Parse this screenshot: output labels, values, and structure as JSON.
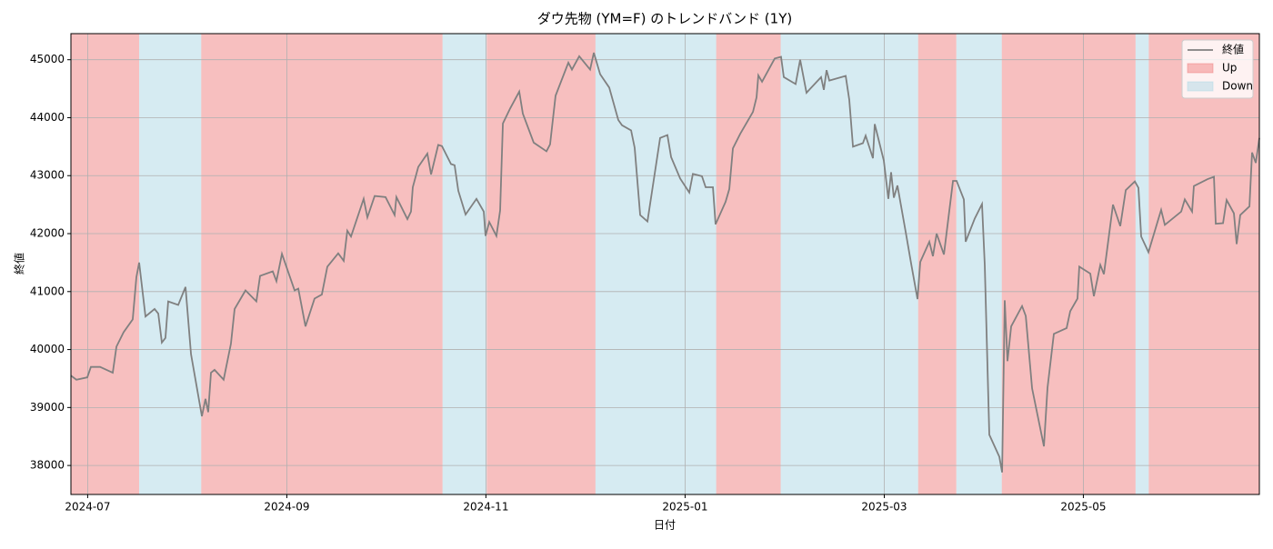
{
  "chart_data": {
    "type": "line",
    "title": "ダウ先物 (YM=F) のトレンドバンド (1Y)",
    "x_label": "日付",
    "y_label": "終値",
    "x": [
      2024.486,
      2024.4906,
      2024.4997,
      2024.5027,
      2024.5104,
      2024.521,
      2024.5241,
      2024.5301,
      2024.5377,
      2024.5408,
      2024.5431,
      2024.5484,
      2024.556,
      2024.5591,
      2024.5621,
      2024.5651,
      2024.5674,
      2024.5758,
      2024.5819,
      2024.5865,
      2024.5956,
      2024.5986,
      2024.6009,
      2024.6032,
      2024.6062,
      2024.6138,
      2024.6199,
      2024.623,
      2024.6321,
      2024.6412,
      2024.6443,
      2024.6549,
      2024.658,
      2024.6626,
      2024.6732,
      2024.6763,
      2024.6823,
      2024.6899,
      2024.696,
      2024.7006,
      2024.7097,
      2024.7143,
      2024.7173,
      2024.7204,
      2024.731,
      2024.7341,
      2024.7402,
      2024.7493,
      2024.7569,
      2024.7584,
      2024.7676,
      2024.7706,
      2024.7721,
      2024.7767,
      2024.7843,
      2024.7874,
      2024.7934,
      2024.7965,
      2024.8041,
      2024.8071,
      2024.8102,
      2024.8163,
      2024.8254,
      2024.8315,
      2024.833,
      2024.8361,
      2024.8421,
      2024.8452,
      2024.8475,
      2024.8536,
      2024.8612,
      2024.8642,
      2024.8733,
      2024.884,
      2024.887,
      2024.8916,
      2024.9023,
      2024.9053,
      2024.9114,
      2024.9205,
      2024.9236,
      2024.9289,
      2024.9365,
      2024.9441,
      2024.9472,
      2024.9548,
      2024.9578,
      2024.9624,
      2024.9685,
      2024.9791,
      2024.9852,
      2024.9883,
      2024.9959,
      2025.0035,
      2025.0065,
      2025.0141,
      2025.0172,
      2025.0233,
      2025.0255,
      2025.0339,
      2025.037,
      2025.04,
      2025.0461,
      2025.0568,
      2025.0598,
      2025.0613,
      2025.0644,
      2025.075,
      2025.0803,
      2025.0826,
      2025.0925,
      2025.0963,
      2025.1016,
      2025.1138,
      2025.1161,
      2025.1184,
      2025.1207,
      2025.1344,
      2025.1374,
      2025.1405,
      2025.1488,
      2025.1511,
      2025.1572,
      2025.1587,
      2025.1663,
      2025.1701,
      2025.1724,
      2025.1747,
      2025.1777,
      2025.1846,
      2025.1892,
      2025.1945,
      2025.1968,
      2025.2044,
      2025.2074,
      2025.2105,
      2025.2166,
      2025.2242,
      2025.2272,
      2025.2333,
      2025.2348,
      2025.2424,
      2025.2485,
      2025.2508,
      2025.2546,
      2025.263,
      2025.2653,
      2025.2675,
      2025.2698,
      2025.2729,
      2025.282,
      2025.2851,
      2025.2904,
      2025.3003,
      2025.3033,
      2025.3086,
      2025.3193,
      2025.3223,
      2025.3284,
      2025.3299,
      2025.3391,
      2025.3421,
      2025.3475,
      2025.3505,
      2025.3581,
      2025.3642,
      2025.3688,
      2025.3764,
      2025.3794,
      2025.3817,
      2025.3878,
      2025.3984,
      2025.4015,
      2025.4152,
      2025.4182,
      2025.4243,
      2025.4258,
      2025.4373,
      2025.4426,
      2025.4441,
      2025.4502,
      2025.4532,
      2025.4593,
      2025.4616,
      2025.4646,
      2025.4723,
      2025.4745,
      2025.4776,
      2025.4806
    ],
    "series": [
      {
        "name": "終値",
        "color": "#808080",
        "values": [
          39550,
          39480,
          39520,
          39700,
          39700,
          39600,
          40050,
          40300,
          40520,
          41250,
          41500,
          40570,
          40700,
          40620,
          40120,
          40200,
          40830,
          40770,
          41080,
          39920,
          38850,
          39150,
          38920,
          39600,
          39650,
          39480,
          40100,
          40700,
          41020,
          40830,
          41270,
          41350,
          41180,
          41650,
          41020,
          41050,
          40400,
          40880,
          40950,
          41430,
          41660,
          41530,
          42050,
          41950,
          42600,
          42280,
          42650,
          42630,
          42320,
          42630,
          42250,
          42380,
          42800,
          43150,
          43380,
          43020,
          43530,
          43510,
          43200,
          43180,
          42740,
          42330,
          42600,
          42380,
          41960,
          42200,
          41960,
          42400,
          43900,
          44160,
          44450,
          44070,
          43570,
          43420,
          43540,
          44380,
          44950,
          44830,
          45060,
          44830,
          45120,
          44750,
          44520,
          43960,
          43870,
          43780,
          43480,
          42320,
          42210,
          43650,
          43700,
          43320,
          42950,
          42710,
          43030,
          42990,
          42800,
          42800,
          42160,
          42550,
          42770,
          43470,
          43720,
          44100,
          44350,
          44730,
          44620,
          45020,
          45050,
          44700,
          44580,
          45000,
          44430,
          44700,
          44480,
          44820,
          44640,
          44720,
          44310,
          43500,
          43560,
          43690,
          43300,
          43890,
          43260,
          42600,
          43060,
          42620,
          42830,
          42030,
          41480,
          40870,
          41510,
          41860,
          41610,
          42000,
          41640,
          42910,
          42910,
          42590,
          41860,
          42260,
          42510,
          41450,
          38530,
          38150,
          37880,
          40850,
          39800,
          40400,
          40750,
          40580,
          39330,
          38330,
          39340,
          40270,
          40370,
          40660,
          40880,
          41430,
          41310,
          40920,
          41460,
          41300,
          42500,
          42130,
          42750,
          42900,
          42790,
          41950,
          41680,
          42410,
          42150,
          42380,
          42590,
          42380,
          42820,
          42940,
          42980,
          42170,
          42180,
          42580,
          42350,
          41820,
          42320,
          42470,
          43400,
          43220,
          43650
        ]
      }
    ],
    "band_series": [
      {
        "name": "Up",
        "color": "rgba(240,128,128,0.5)",
        "ranges": [
          [
            2024.486,
            2024.5431
          ],
          [
            2024.595,
            2024.797
          ],
          [
            2024.834,
            2024.925
          ],
          [
            2025.026,
            2025.08
          ],
          [
            2025.195,
            2025.227
          ],
          [
            2025.265,
            2025.377
          ],
          [
            2025.388,
            2025.4806
          ]
        ]
      },
      {
        "name": "Down",
        "color": "rgba(173,216,230,0.5)",
        "ranges": [
          [
            2024.5431,
            2024.595
          ],
          [
            2024.797,
            2024.834
          ],
          [
            2024.925,
            2025.026
          ],
          [
            2025.08,
            2025.195
          ],
          [
            2025.227,
            2025.265
          ],
          [
            2025.377,
            2025.388
          ]
        ]
      }
    ],
    "xlim": [
      2024.486,
      2025.4806
    ],
    "xticks": [
      {
        "value": 2024.5,
        "label": "2024-07"
      },
      {
        "value": 2024.6667,
        "label": "2024-09"
      },
      {
        "value": 2024.8333,
        "label": "2024-11"
      },
      {
        "value": 2025.0,
        "label": "2025-01"
      },
      {
        "value": 2025.1667,
        "label": "2025-03"
      },
      {
        "value": 2025.3333,
        "label": "2025-05"
      }
    ],
    "ylim": [
      37500,
      45450
    ],
    "yticks": [
      38000,
      39000,
      40000,
      41000,
      42000,
      43000,
      44000,
      45000
    ],
    "grid": true,
    "legend": "upper right"
  }
}
